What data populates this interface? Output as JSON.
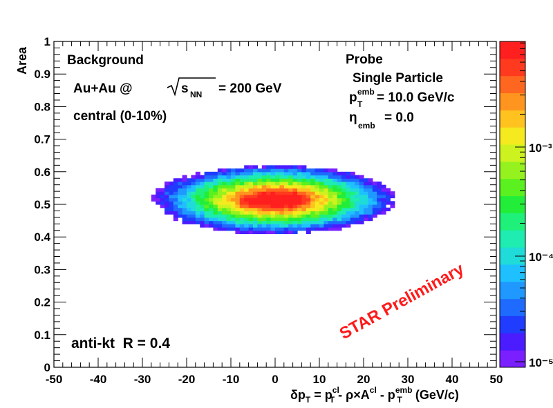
{
  "chart_data": {
    "type": "heatmap",
    "title": "",
    "xlabel": {
      "prefix": "δp",
      "sub1": "T",
      "eq": " = p",
      "sup2": "cl",
      "sub2": "T",
      "mid": " - ρ×A",
      "sup3": "cl",
      "mid2": " - p",
      "sup4": "emb",
      "sub4": "T",
      "unit": " (GeV/c)"
    },
    "ylabel": "Area",
    "xlim": [
      -50,
      50
    ],
    "ylim": [
      0,
      1
    ],
    "x_ticks": [
      "-50",
      "-40",
      "-30",
      "-20",
      "-10",
      "0",
      "10",
      "20",
      "30",
      "40",
      "50"
    ],
    "y_ticks": [
      "0",
      "0.1",
      "0.2",
      "0.3",
      "0.4",
      "0.5",
      "0.6",
      "0.7",
      "0.8",
      "0.9",
      "1"
    ],
    "distribution": {
      "description": "2D histogram, log z scale, elliptical blob",
      "center_x": 0,
      "center_y": 0.515,
      "x_extent": [
        -24,
        29
      ],
      "y_extent": [
        0.42,
        0.63
      ],
      "peak_region_x": [
        -8,
        7
      ],
      "peak_region_y": [
        0.49,
        0.55
      ]
    },
    "colorbar": {
      "scale": "log",
      "tick_labels": [
        "10⁻⁵",
        "10⁻⁴",
        "10⁻³"
      ],
      "tick_values": [
        1e-05,
        0.0001,
        0.001
      ],
      "palette": [
        "#7a1fff",
        "#4a1cff",
        "#1f3cff",
        "#1f6bff",
        "#1f99ff",
        "#1fc0ff",
        "#1fdcd8",
        "#1fecb0",
        "#1ff07a",
        "#22ee3a",
        "#5bf01f",
        "#96f21f",
        "#cef21f",
        "#f5ea1f",
        "#ffc21f",
        "#ff951f",
        "#ff661f",
        "#ff3a1f",
        "#ff1f1f"
      ]
    },
    "annotations": {
      "background": "Background",
      "collision_prefix": "Au+Au @",
      "sqrt_s": "s",
      "sqrt_sub": "NN",
      "energy": "= 200 GeV",
      "centrality": "central (0-10%)",
      "probe": "Probe",
      "probe_type": "Single Particle",
      "pt_emb_symbol": "p",
      "pt_emb_sup": "emb",
      "pt_emb_sub": "T",
      "pt_emb_value": "= 10.0 GeV/c",
      "eta_symbol": "η",
      "eta_sub": "emb",
      "eta_value": "= 0.0",
      "algorithm": "anti-kt  R = 0.4",
      "watermark": "STAR Preliminary"
    }
  }
}
